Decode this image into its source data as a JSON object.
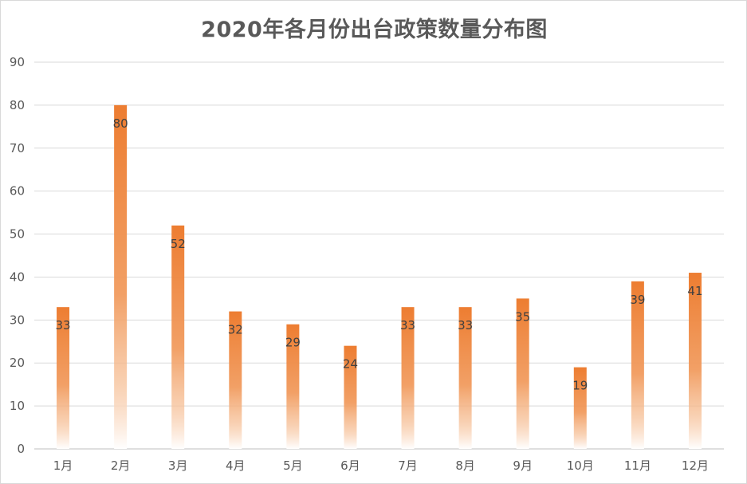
{
  "chart_data": {
    "type": "bar",
    "title": "2020年各月份出台政策数量分布图",
    "categories": [
      "1月",
      "2月",
      "3月",
      "4月",
      "5月",
      "6月",
      "7月",
      "8月",
      "9月",
      "10月",
      "11月",
      "12月"
    ],
    "values": [
      33,
      80,
      52,
      32,
      29,
      24,
      33,
      33,
      35,
      19,
      39,
      41
    ],
    "y_ticks": [
      0,
      10,
      20,
      30,
      40,
      50,
      60,
      70,
      80,
      90
    ],
    "ylim": [
      0,
      90
    ],
    "grid": true,
    "legend": "none",
    "bar_color": "#ED7D31",
    "bar_fill": "vertical gradient fading to white at base",
    "data_labels": true
  }
}
